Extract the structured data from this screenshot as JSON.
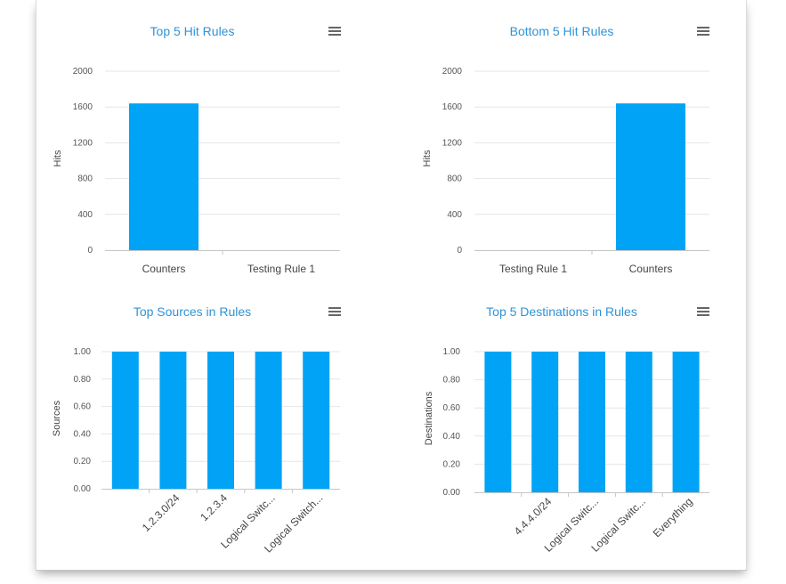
{
  "accent_color": "#2f93d6",
  "bar_color": "#00a3f5",
  "menu_icon": "hamburger-menu-icon",
  "chart_data": [
    {
      "id": "top5-hit",
      "type": "bar",
      "title": "Top 5 Hit Rules",
      "ylabel": "Hits",
      "ylim": [
        0,
        2000
      ],
      "yticks": [
        "0",
        "400",
        "800",
        "1200",
        "1600",
        "2000"
      ],
      "categories": [
        "Counters",
        "Testing Rule 1"
      ],
      "values": [
        1640,
        0
      ],
      "label_rotation": "none",
      "grid": true
    },
    {
      "id": "bottom5-hit",
      "type": "bar",
      "title": "Bottom 5 Hit Rules",
      "ylabel": "Hits",
      "ylim": [
        0,
        2000
      ],
      "yticks": [
        "0",
        "400",
        "800",
        "1200",
        "1600",
        "2000"
      ],
      "categories": [
        "Testing Rule 1",
        "Counters"
      ],
      "values": [
        0,
        1640
      ],
      "label_rotation": "none",
      "grid": true
    },
    {
      "id": "top-sources",
      "type": "bar",
      "title": "Top Sources in Rules",
      "ylabel": "Sources",
      "ylim": [
        0,
        1
      ],
      "yticks": [
        "0.00",
        "0.20",
        "0.40",
        "0.60",
        "0.80",
        "1.00"
      ],
      "categories": [
        "",
        "1.2.3.0/24",
        "1.2.3.4",
        "Logical Switc...",
        "Logical Switch..."
      ],
      "values": [
        1,
        1,
        1,
        1,
        1
      ],
      "label_rotation": "-45",
      "grid": true
    },
    {
      "id": "top5-destinations",
      "type": "bar",
      "title": "Top 5 Destinations in Rules",
      "ylabel": "Destinations",
      "ylim": [
        0,
        1
      ],
      "yticks": [
        "0.00",
        "0.20",
        "0.40",
        "0.60",
        "0.80",
        "1.00"
      ],
      "categories": [
        "",
        "4.4.4.0/24",
        "Logical Switc...",
        "Logical Switc...",
        "Everything"
      ],
      "values": [
        1,
        1,
        1,
        1,
        1
      ],
      "label_rotation": "-45",
      "grid": true
    }
  ]
}
